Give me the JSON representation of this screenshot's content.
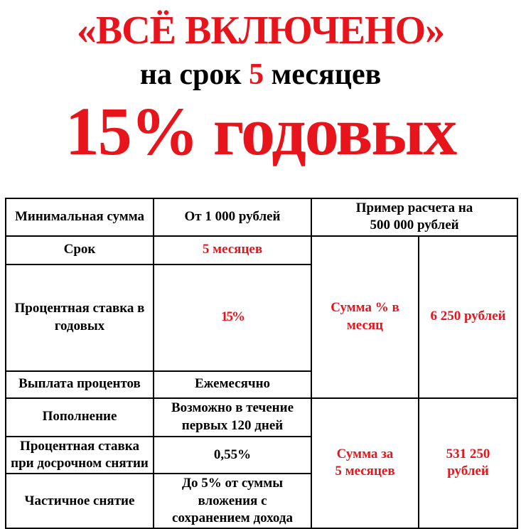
{
  "colors": {
    "accent_red": "#e8141c",
    "text_black": "#000000",
    "border_black": "#000000",
    "background": "#ffffff"
  },
  "header": {
    "title": "«ВСЁ ВКЛЮЧЕНО»",
    "subtitle": {
      "prefix": "на срок ",
      "highlight": "5",
      "suffix": " месяцев"
    },
    "rate_headline": "15% годовых"
  },
  "table": {
    "product_rows": [
      {
        "label": "Минимальная сумма",
        "value": "От 1 000 рублей"
      },
      {
        "label": "Срок",
        "value": "5 месяцев"
      },
      {
        "label": "Процентная ставка в\nгодовых",
        "value": "15%"
      },
      {
        "label": "Выплата процентов",
        "value": "Ежемесячно"
      },
      {
        "label": "Пополнение",
        "value": "Возможно в течение\nпервых 120 дней"
      },
      {
        "label": "Процентная ставка\nпри досрочном снятии",
        "value": "0,55%"
      },
      {
        "label": "Частичное снятие",
        "value": "До 5% от суммы\nвложения с\nсохранением дохода"
      }
    ],
    "example": {
      "header": "Пример расчета на\n500 000 рублей",
      "monthly": {
        "label": "Сумма % в\nмесяц",
        "value": "6 250 рублей"
      },
      "total": {
        "label": "Сумма за\n5 месяцев",
        "value": "531 250\nрублей"
      }
    }
  }
}
